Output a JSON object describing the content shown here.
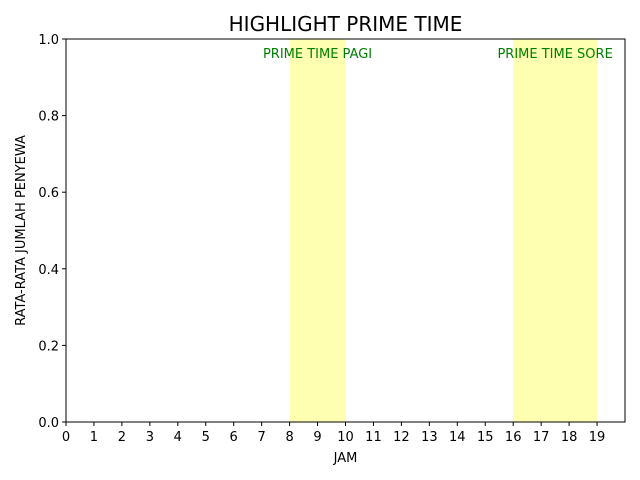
{
  "chart_data": {
    "type": "area",
    "title": "HIGHLIGHT PRIME TIME",
    "xlabel": "JAM",
    "ylabel": "RATA-RATA JUMLAH PENYEWA",
    "xlim": [
      0,
      20
    ],
    "ylim": [
      0,
      1
    ],
    "x_ticks": [
      "0",
      "1",
      "2",
      "3",
      "4",
      "5",
      "6",
      "7",
      "8",
      "9",
      "10",
      "11",
      "12",
      "13",
      "14",
      "15",
      "16",
      "17",
      "18",
      "19"
    ],
    "y_ticks": [
      "0.0",
      "0.2",
      "0.4",
      "0.6",
      "0.8",
      "1.0"
    ],
    "grid": false,
    "series": [],
    "highlight_bands": [
      {
        "label": "PRIME TIME PAGI",
        "x_start": 8,
        "x_end": 10,
        "fill": "#ffffb2",
        "label_color": "#008000"
      },
      {
        "label": "PRIME TIME SORE",
        "x_start": 16,
        "x_end": 19,
        "fill": "#ffffb2",
        "label_color": "#008000"
      }
    ]
  }
}
